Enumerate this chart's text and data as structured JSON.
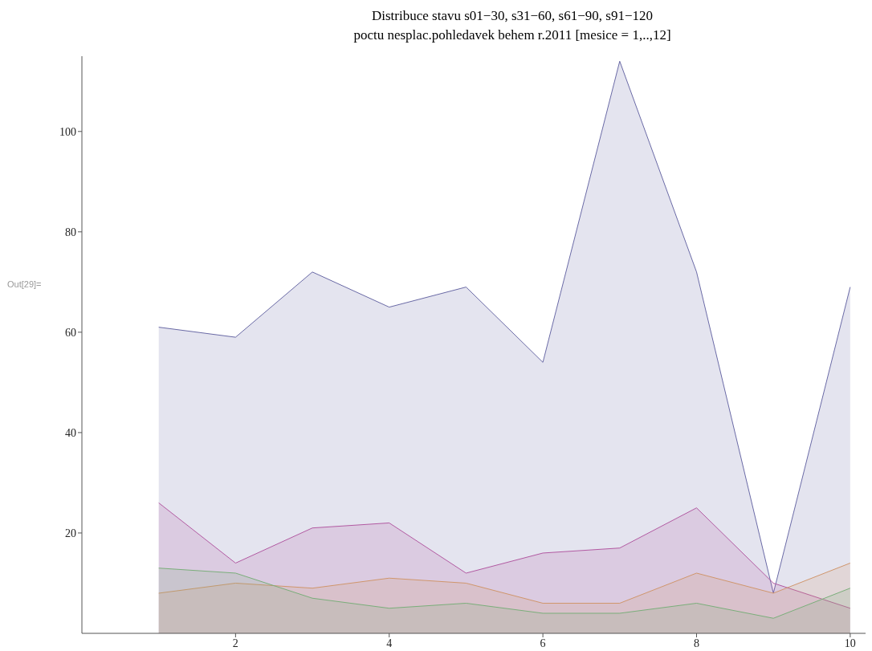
{
  "chart_data": {
    "type": "area",
    "title": "Distribuce stavu s01−30, s31−60, s61−90, s91−120",
    "subtitle": "poctu nesplac.pohledavek behem r.2011 [mesice = 1,..,12]",
    "annotations": [
      "Out[29]="
    ],
    "x": [
      1,
      2,
      3,
      4,
      5,
      6,
      7,
      8,
      9,
      10
    ],
    "series": [
      {
        "color": "#6a6aa6",
        "values": [
          61,
          59,
          72,
          65,
          69,
          54,
          114,
          72,
          8,
          69
        ]
      },
      {
        "color": "#b25aa2",
        "values": [
          26,
          14,
          21,
          22,
          12,
          16,
          17,
          25,
          10,
          5
        ]
      },
      {
        "color": "#d0966c",
        "values": [
          8,
          10,
          9,
          11,
          10,
          6,
          6,
          12,
          8,
          14
        ]
      },
      {
        "color": "#7aae7a",
        "values": [
          13,
          12,
          7,
          5,
          6,
          4,
          4,
          6,
          3,
          9
        ]
      }
    ],
    "xlim": [
      0,
      10.2
    ],
    "xticks": [
      2,
      4,
      6,
      8,
      10
    ],
    "ylim": [
      0,
      115
    ],
    "yticks": [
      20,
      40,
      60,
      80,
      100
    ]
  }
}
